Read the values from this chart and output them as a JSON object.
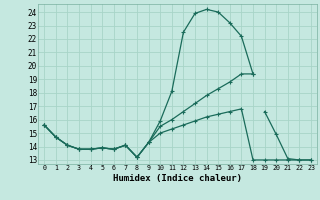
{
  "xlabel": "Humidex (Indice chaleur)",
  "background_color": "#c5e8e0",
  "line_color": "#1a6b5a",
  "grid_color": "#a8d4c8",
  "xlim": [
    -0.5,
    23.5
  ],
  "ylim": [
    12.7,
    24.6
  ],
  "xticks": [
    0,
    1,
    2,
    3,
    4,
    5,
    6,
    7,
    8,
    9,
    10,
    11,
    12,
    13,
    14,
    15,
    16,
    17,
    18,
    19,
    20,
    21,
    22,
    23
  ],
  "yticks": [
    13,
    14,
    15,
    16,
    17,
    18,
    19,
    20,
    21,
    22,
    23,
    24
  ],
  "series": [
    {
      "x": [
        0,
        1,
        2,
        3,
        4,
        5,
        6,
        7,
        8,
        9,
        10,
        11,
        12,
        13,
        14,
        15,
        16,
        17,
        18
      ],
      "y": [
        15.6,
        14.7,
        14.1,
        13.8,
        13.8,
        13.9,
        13.8,
        14.1,
        13.2,
        14.3,
        15.9,
        18.1,
        22.5,
        23.9,
        24.2,
        24.0,
        23.2,
        22.2,
        19.4
      ]
    },
    {
      "x": [
        0,
        1,
        2,
        3,
        4,
        5,
        6,
        7,
        8,
        9,
        10,
        11,
        12,
        13,
        14,
        15,
        16,
        17,
        18
      ],
      "y": [
        15.6,
        14.7,
        14.1,
        13.8,
        13.8,
        13.9,
        13.8,
        14.1,
        13.2,
        14.3,
        15.5,
        16.0,
        16.6,
        17.2,
        17.8,
        18.3,
        18.8,
        19.4,
        19.4
      ]
    },
    {
      "x": [
        0,
        1,
        2,
        3,
        4,
        5,
        6,
        7,
        8,
        9,
        10,
        11,
        12,
        13,
        14,
        15,
        16,
        17,
        18,
        19,
        20,
        21,
        22,
        23
      ],
      "y": [
        15.6,
        14.7,
        14.1,
        13.8,
        13.8,
        13.9,
        13.8,
        14.1,
        13.2,
        14.3,
        15.0,
        15.3,
        15.6,
        15.9,
        16.2,
        16.4,
        16.6,
        16.8,
        13.0,
        13.0,
        13.0,
        13.0,
        13.0,
        13.0
      ]
    },
    {
      "x": [
        19,
        20,
        21,
        22,
        23
      ],
      "y": [
        16.6,
        14.9,
        13.1,
        13.0,
        13.0
      ]
    }
  ]
}
